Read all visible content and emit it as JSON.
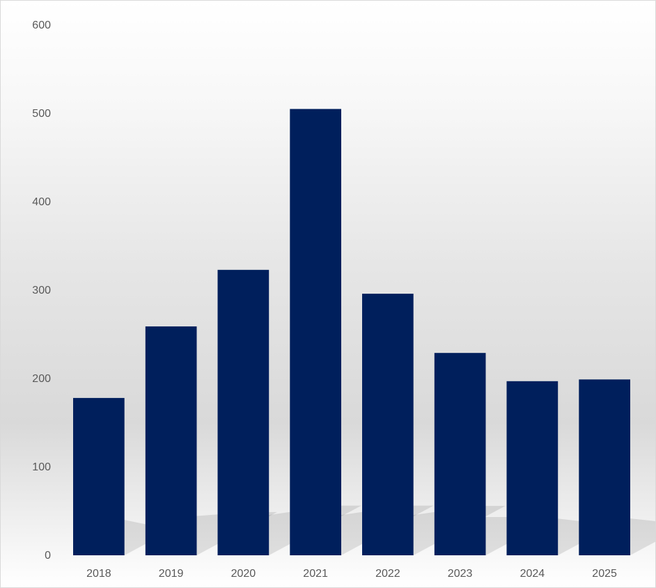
{
  "chart_data": {
    "type": "bar",
    "categories": [
      "2018",
      "2019",
      "2020",
      "2021",
      "2022",
      "2023",
      "2024",
      "2025"
    ],
    "values": [
      178,
      259,
      323,
      505,
      296,
      229,
      197,
      199
    ],
    "title": "",
    "xlabel": "",
    "ylabel": "",
    "ylim": [
      0,
      600
    ],
    "yticks": [
      "0",
      "100",
      "200",
      "300",
      "400",
      "500",
      "600"
    ],
    "grid": false,
    "legend": "none",
    "colors": {
      "bar": "#001F5C",
      "tick_text": "#595959",
      "frame": "#D9D9D9"
    }
  }
}
